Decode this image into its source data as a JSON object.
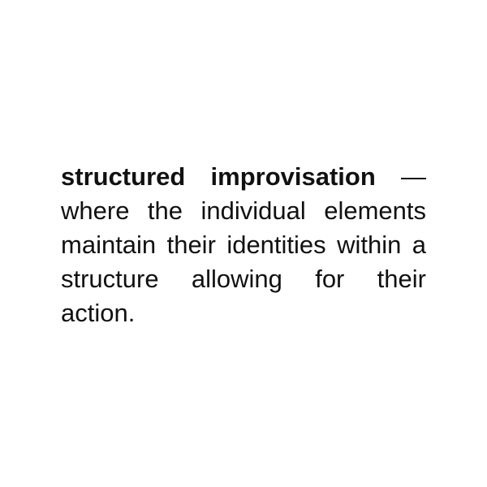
{
  "quote": {
    "emphasis": "structured improvisation",
    "body": "— where the individual elements maintain their identities within a structure allowing for their action."
  }
}
